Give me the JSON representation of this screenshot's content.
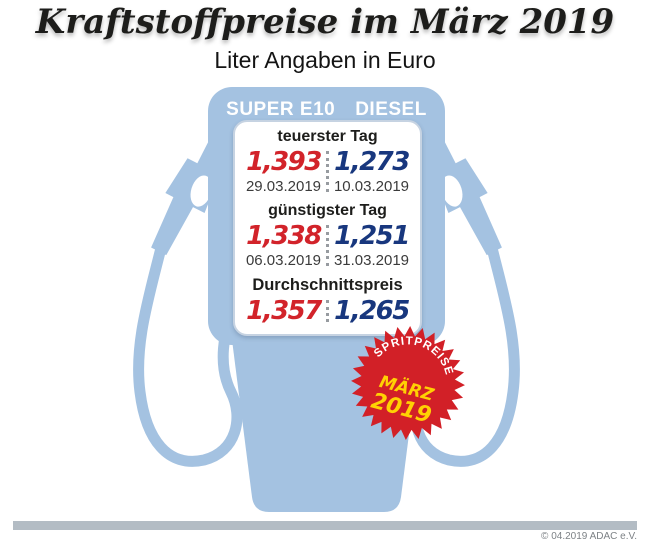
{
  "header": {
    "title": "Kraftstoffpreise im März 2019",
    "subtitle": "Liter Angaben in Euro"
  },
  "pump": {
    "fuel_columns": [
      "SUPER E10",
      "DIESEL"
    ],
    "sections": [
      {
        "label": "teuerster Tag",
        "prices": [
          {
            "value": "1,393",
            "date": "29.03.2019"
          },
          {
            "value": "1,273",
            "date": "10.03.2019"
          }
        ]
      },
      {
        "label": "günstigster Tag",
        "prices": [
          {
            "value": "1,338",
            "date": "06.03.2019"
          },
          {
            "value": "1,251",
            "date": "31.03.2019"
          }
        ]
      },
      {
        "label": "Durchschnittspreis",
        "prices": [
          {
            "value": "1,357"
          },
          {
            "value": "1,265"
          }
        ]
      }
    ]
  },
  "badge": {
    "arc_text": "SPRITPREISE",
    "month": "MÄRZ",
    "year": "2019"
  },
  "footer": {
    "copyright": "© 04.2019 ADAC e.V."
  },
  "colors": {
    "pump_blue": "#a4c2e1",
    "super_e10_red": "#d2232a",
    "diesel_navy": "#18377e",
    "badge_red": "#d22027",
    "badge_yellow": "#ffd103",
    "footer_bar_gray": "#b3bcc4"
  },
  "chart_data": {
    "type": "table",
    "title": "Kraftstoffpreise im März 2019",
    "subtitle": "Liter Angaben in Euro",
    "unit": "Euro pro Liter",
    "columns": [
      "SUPER E10",
      "DIESEL"
    ],
    "rows": [
      {
        "category": "teuerster Tag",
        "super_e10": 1.393,
        "super_e10_date": "29.03.2019",
        "diesel": 1.273,
        "diesel_date": "10.03.2019"
      },
      {
        "category": "günstigster Tag",
        "super_e10": 1.338,
        "super_e10_date": "06.03.2019",
        "diesel": 1.251,
        "diesel_date": "31.03.2019"
      },
      {
        "category": "Durchschnittspreis",
        "super_e10": 1.357,
        "diesel": 1.265
      }
    ],
    "source": "© 04.2019 ADAC e.V."
  }
}
